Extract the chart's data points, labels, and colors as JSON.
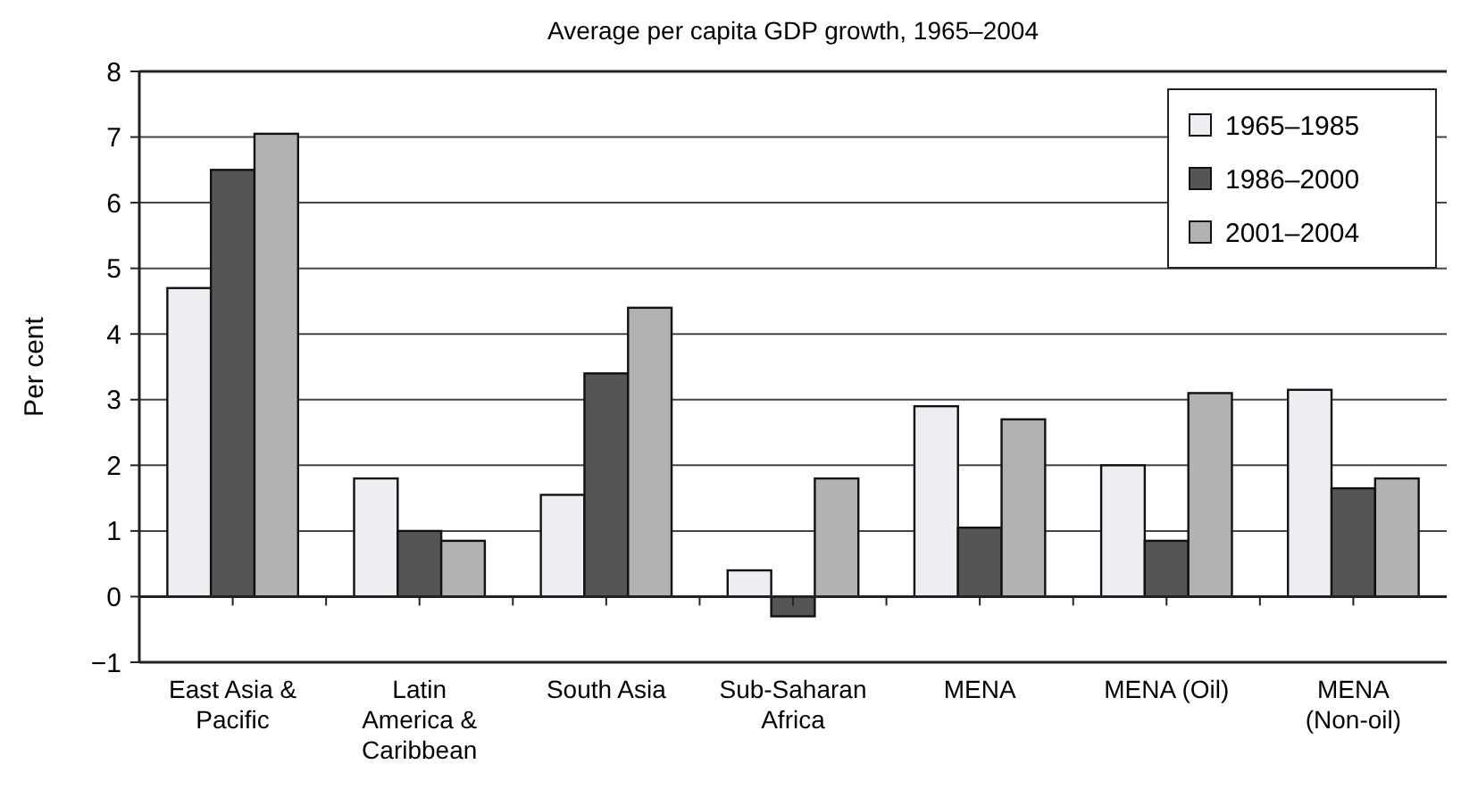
{
  "chart_data": {
    "type": "bar",
    "title": "Average per capita GDP growth, 1965–2004",
    "ylabel": "Per cent",
    "categories": [
      "East Asia & Pacific",
      "Latin America & Caribbean",
      "South Asia",
      "Sub-Saharan Africa",
      "MENA",
      "MENA (Oil)",
      "MENA (Non-oil)"
    ],
    "series": [
      {
        "name": "1965–1985",
        "color": "#eeeef2",
        "values": [
          4.7,
          1.8,
          1.55,
          0.4,
          2.9,
          2.0,
          3.15
        ]
      },
      {
        "name": "1986–2000",
        "color": "#555555",
        "values": [
          6.5,
          1.0,
          3.4,
          -0.3,
          1.05,
          0.85,
          1.65
        ]
      },
      {
        "name": "2001–2004",
        "color": "#b2b2b2",
        "values": [
          7.05,
          0.85,
          4.4,
          1.8,
          2.7,
          3.1,
          1.8
        ]
      }
    ],
    "ylim": [
      -1,
      8
    ],
    "yticks": [
      {
        "value": -1,
        "label": "−1"
      },
      0,
      1,
      2,
      3,
      4,
      5,
      6,
      7,
      8
    ],
    "grid": "y",
    "legend": "top right"
  }
}
